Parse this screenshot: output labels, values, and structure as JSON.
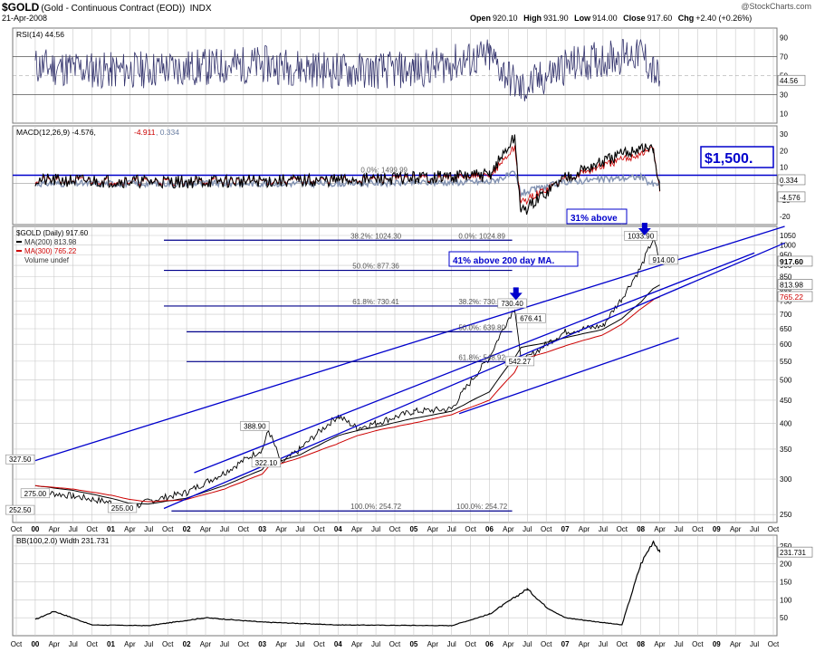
{
  "header": {
    "ticker": "$GOLD",
    "subtitle": "(Gold - Continuous Contract (EOD))",
    "exchange": "INDX",
    "date": "21-Apr-2008",
    "open_label": "Open",
    "open": "920.10",
    "high_label": "High",
    "high": "931.90",
    "low_label": "Low",
    "low": "914.00",
    "close_label": "Close",
    "close": "917.60",
    "chg_label": "Chg",
    "chg": "+2.40 (+0.26%)",
    "brand": "@StockCharts.com"
  },
  "colors": {
    "channel": "#0000cc",
    "price": "#000000",
    "ma200": "#000000",
    "ma300": "#cc0000",
    "indicator": "#35356e",
    "grid": "#c8c8c8"
  },
  "x_axis_labels": [
    "Oct",
    "00",
    "Apr",
    "Jul",
    "Oct",
    "01",
    "Apr",
    "Jul",
    "Oct",
    "02",
    "Apr",
    "Jul",
    "Oct",
    "03",
    "Apr",
    "Jul",
    "Oct",
    "04",
    "Apr",
    "Jul",
    "Oct",
    "05",
    "Apr",
    "Jul",
    "Oct",
    "06",
    "Apr",
    "Jul",
    "Oct",
    "07",
    "Apr",
    "Jul",
    "Oct",
    "08",
    "Apr",
    "Jul",
    "Oct",
    "09",
    "Apr",
    "Jul",
    "Oct"
  ],
  "panels": {
    "rsi": {
      "label": "RSI(14) 44.56",
      "ticks": [
        "90",
        "70",
        "50",
        "30",
        "10"
      ],
      "current": "44.56"
    },
    "macd": {
      "label": "MACD(12,26,9) -4.576, ",
      "signal": "-4.911",
      "hist": ", 0.334",
      "ticks": [
        "30",
        "20",
        "10",
        "0",
        "-10",
        "-20"
      ],
      "values": [
        "0.334",
        "-4.576"
      ],
      "fib_label": "0.0%: 1499.99",
      "callout": "$1,500."
    },
    "price": {
      "legend_title": "$GOLD (Daily) 917.60",
      "legend_ma200": "MA(200) 813.98",
      "legend_ma300": "MA(300) 765.22",
      "legend_volume": "Volume undef",
      "ticks": [
        "1050",
        "1000",
        "950",
        "900",
        "850",
        "800",
        "750",
        "700",
        "650",
        "600",
        "550",
        "500",
        "450",
        "400",
        "350",
        "300",
        "250"
      ],
      "right_values": [
        "917.60",
        "813.98",
        "765.22"
      ],
      "annotation_ma": "41% above 200 day MA.",
      "annotation_31": "31% above"
    },
    "bb": {
      "label": "BB(100,2.0) Width 231.731",
      "ticks": [
        "250",
        "200",
        "150",
        "100",
        "50"
      ],
      "current": "231.731"
    }
  },
  "fib_levels": [
    {
      "label_a": "38.2%: 1024.30",
      "label_b": "0.0%: 1024.89"
    },
    {
      "label_a": "50.0%: 877.36",
      "label_b": ""
    },
    {
      "label_a": "61.8%: 730.41",
      "label_b": "38.2%: 730.68"
    },
    {
      "label_a": "",
      "label_b": "50.0%: 639.80"
    },
    {
      "label_a": "",
      "label_b": "61.8%: 548.92"
    },
    {
      "label_a": "100.0%: 254.72",
      "label_b": "100.0%: 254.72"
    }
  ],
  "price_labels": [
    "327.50",
    "275.00",
    "252.50",
    "255.00",
    "388.90",
    "322.10",
    "730.40",
    "676.41",
    "542.27",
    "1033.90",
    "914.00"
  ],
  "chart_data": [
    {
      "type": "line",
      "title": "$GOLD (Daily) 917.60",
      "y_scale": "log",
      "ylim": [
        240,
        1100
      ],
      "x": [
        "2000-01",
        "2000-07",
        "2001-01",
        "2001-04",
        "2001-07",
        "2002-01",
        "2002-07",
        "2003-01",
        "2003-02",
        "2003-04",
        "2003-07",
        "2004-01",
        "2004-04",
        "2004-07",
        "2005-01",
        "2005-07",
        "2006-01",
        "2006-05",
        "2006-06",
        "2006-10",
        "2007-01",
        "2007-07",
        "2007-10",
        "2008-01",
        "2008-03",
        "2008-04"
      ],
      "series": [
        {
          "name": "$GOLD",
          "values": [
            282,
            275,
            266,
            257,
            268,
            280,
            310,
            350,
            385,
            325,
            350,
            415,
            390,
            400,
            425,
            430,
            560,
            725,
            545,
            600,
            640,
            660,
            760,
            890,
            1033,
            917
          ]
        },
        {
          "name": "MA(200)",
          "values": [
            290,
            283,
            272,
            265,
            264,
            272,
            290,
            315,
            330,
            330,
            340,
            375,
            385,
            392,
            410,
            425,
            470,
            560,
            590,
            605,
            620,
            648,
            685,
            745,
            800,
            814
          ]
        },
        {
          "name": "MA(300)",
          "values": [
            290,
            285,
            276,
            270,
            267,
            270,
            285,
            308,
            320,
            325,
            335,
            360,
            375,
            385,
            400,
            418,
            450,
            520,
            555,
            575,
            595,
            630,
            665,
            720,
            755,
            765
          ]
        }
      ]
    },
    {
      "type": "line",
      "title": "RSI(14) 44.56",
      "ylim": [
        10,
        90
      ],
      "x": [
        "2000-01",
        "2001-01",
        "2002-01",
        "2003-01",
        "2004-01",
        "2005-01",
        "2006-01",
        "2006-06",
        "2007-01",
        "2008-01",
        "2008-04"
      ],
      "series": [
        {
          "name": "RSI(14)",
          "values": [
            60,
            55,
            58,
            62,
            55,
            56,
            70,
            35,
            60,
            75,
            44.56
          ]
        }
      ]
    },
    {
      "type": "line",
      "title": "MACD(12,26,9)",
      "ylim": [
        -20,
        30
      ],
      "x": [
        "2000-01",
        "2002-01",
        "2004-01",
        "2006-01",
        "2006-05",
        "2006-06",
        "2007-01",
        "2008-01",
        "2008-03",
        "2008-04"
      ],
      "series": [
        {
          "name": "MACD",
          "values": [
            2,
            1,
            2,
            5,
            28,
            -18,
            4,
            22,
            20,
            -4.576
          ]
        },
        {
          "name": "Signal",
          "values": [
            2,
            1,
            2,
            4,
            22,
            -12,
            3,
            18,
            21,
            -4.911
          ]
        },
        {
          "name": "Histogram",
          "values": [
            0,
            0,
            0,
            1,
            6,
            -6,
            1,
            4,
            -1,
            0.334
          ]
        }
      ]
    },
    {
      "type": "line",
      "title": "BB(100,2.0) Width 231.731",
      "ylim": [
        0,
        260
      ],
      "x": [
        "2000-01",
        "2000-04",
        "2000-10",
        "2001-07",
        "2002-04",
        "2003-01",
        "2004-01",
        "2005-07",
        "2006-01",
        "2006-07",
        "2006-10",
        "2007-01",
        "2007-10",
        "2008-01",
        "2008-03",
        "2008-04"
      ],
      "series": [
        {
          "name": "BB Width",
          "values": [
            45,
            68,
            30,
            28,
            50,
            38,
            30,
            28,
            60,
            130,
            80,
            50,
            30,
            200,
            265,
            231.731
          ]
        }
      ]
    }
  ]
}
